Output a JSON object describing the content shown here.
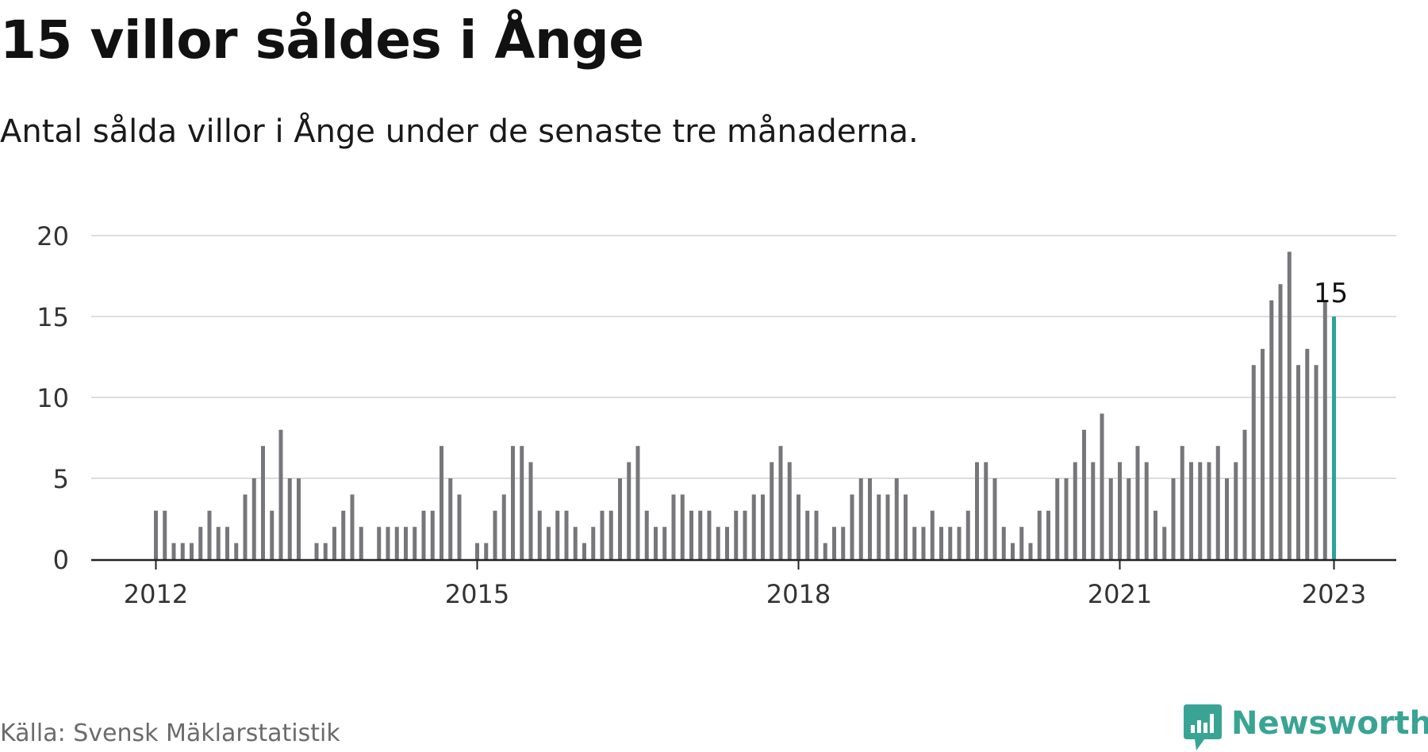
{
  "header": {
    "title": "15 villor såldes i Ånge",
    "subtitle": "Antal sålda villor i Ånge under de senaste tre månaderna."
  },
  "footer": {
    "source": "Källa: Svensk Mäklarstatistik",
    "brand": "Newsworthy"
  },
  "colors": {
    "bar": "#77767a",
    "highlight": "#2aa597",
    "grid": "#dddddd",
    "axis": "#222222",
    "brand": "#3aa494"
  },
  "chart_data": {
    "type": "bar",
    "start": "2012-01",
    "x": [
      "2012-01",
      "2012-02",
      "2012-03",
      "2012-04",
      "2012-05",
      "2012-06",
      "2012-07",
      "2012-08",
      "2012-09",
      "2012-10",
      "2012-11",
      "2012-12",
      "2013-01",
      "2013-02",
      "2013-03",
      "2013-04",
      "2013-05",
      "2013-06",
      "2013-07",
      "2013-08",
      "2013-09",
      "2013-10",
      "2013-11",
      "2013-12",
      "2014-01",
      "2014-02",
      "2014-03",
      "2014-04",
      "2014-05",
      "2014-06",
      "2014-07",
      "2014-08",
      "2014-09",
      "2014-10",
      "2014-11",
      "2014-12",
      "2015-01",
      "2015-02",
      "2015-03",
      "2015-04",
      "2015-05",
      "2015-06",
      "2015-07",
      "2015-08",
      "2015-09",
      "2015-10",
      "2015-11",
      "2015-12",
      "2016-01",
      "2016-02",
      "2016-03",
      "2016-04",
      "2016-05",
      "2016-06",
      "2016-07",
      "2016-08",
      "2016-09",
      "2016-10",
      "2016-11",
      "2016-12",
      "2017-01",
      "2017-02",
      "2017-03",
      "2017-04",
      "2017-05",
      "2017-06",
      "2017-07",
      "2017-08",
      "2017-09",
      "2017-10",
      "2017-11",
      "2017-12",
      "2018-01",
      "2018-02",
      "2018-03",
      "2018-04",
      "2018-05",
      "2018-06",
      "2018-07",
      "2018-08",
      "2018-09",
      "2018-10",
      "2018-11",
      "2018-12",
      "2019-01",
      "2019-02",
      "2019-03",
      "2019-04",
      "2019-05",
      "2019-06",
      "2019-07",
      "2019-08",
      "2019-09",
      "2019-10",
      "2019-11",
      "2019-12",
      "2020-01",
      "2020-02",
      "2020-03",
      "2020-04",
      "2020-05",
      "2020-06",
      "2020-07",
      "2020-08",
      "2020-09",
      "2020-10",
      "2020-11",
      "2020-12",
      "2021-01",
      "2021-02",
      "2021-03",
      "2021-04",
      "2021-05",
      "2021-06",
      "2021-07",
      "2021-08",
      "2021-09",
      "2021-10",
      "2021-11",
      "2021-12",
      "2022-01",
      "2022-02",
      "2022-03",
      "2022-04",
      "2022-05",
      "2022-06",
      "2022-07",
      "2022-08",
      "2022-09",
      "2022-10",
      "2022-11",
      "2022-12",
      "2023-01"
    ],
    "values": [
      3,
      3,
      1,
      1,
      1,
      2,
      3,
      2,
      2,
      1,
      4,
      5,
      7,
      3,
      8,
      5,
      5,
      null,
      1,
      1,
      2,
      3,
      4,
      2,
      null,
      2,
      2,
      2,
      2,
      2,
      3,
      3,
      7,
      5,
      4,
      null,
      1,
      1,
      3,
      4,
      7,
      7,
      6,
      3,
      2,
      3,
      3,
      2,
      1,
      2,
      3,
      3,
      5,
      6,
      7,
      3,
      2,
      2,
      4,
      4,
      3,
      3,
      3,
      2,
      2,
      3,
      3,
      4,
      4,
      6,
      7,
      6,
      4,
      3,
      3,
      1,
      2,
      2,
      4,
      5,
      5,
      4,
      4,
      5,
      4,
      2,
      2,
      3,
      2,
      2,
      2,
      3,
      6,
      6,
      5,
      2,
      1,
      2,
      1,
      3,
      3,
      5,
      5,
      6,
      8,
      6,
      9,
      5,
      6,
      5,
      7,
      6,
      3,
      2,
      5,
      7,
      6,
      6,
      6,
      7,
      5,
      6,
      8,
      12,
      13,
      16,
      17,
      19,
      12,
      13,
      12,
      16,
      15
    ],
    "highlight_index": 132,
    "highlight_label": "15",
    "yticks": [
      0,
      5,
      10,
      15,
      20
    ],
    "ylim": [
      0,
      20
    ],
    "xtick_labels": [
      {
        "label": "2012",
        "index": 0
      },
      {
        "label": "2015",
        "index": 36
      },
      {
        "label": "2018",
        "index": 72
      },
      {
        "label": "2021",
        "index": 108
      },
      {
        "label": "2023",
        "index": 132
      }
    ],
    "grid": true,
    "legend": "none"
  }
}
